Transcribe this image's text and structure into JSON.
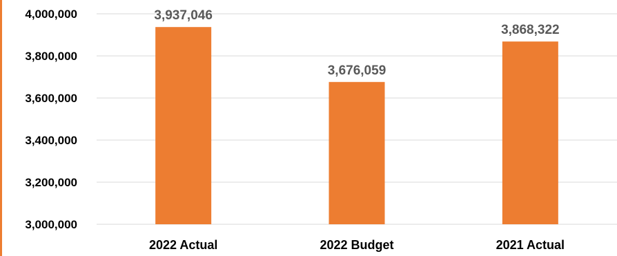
{
  "colors": {
    "bar": "#ed7d31",
    "grid": "#d9d9d9",
    "text": "#000000",
    "data_label": "#595959",
    "left_accent": "#ed7d31"
  },
  "chart_data": {
    "type": "bar",
    "categories": [
      "2022 Actual",
      "2022 Budget",
      "2021 Actual"
    ],
    "values": [
      3937046,
      3676059,
      3868322
    ],
    "data_labels": [
      "3,937,046",
      "3,676,059",
      "3,868,322"
    ],
    "title": "",
    "xlabel": "",
    "ylabel": "",
    "ylim": [
      3000000,
      4000000
    ],
    "yticks": [
      3000000,
      3200000,
      3400000,
      3600000,
      3800000,
      4000000
    ],
    "ytick_labels": [
      "3,000,000",
      "3,200,000",
      "3,400,000",
      "3,600,000",
      "3,800,000",
      "4,000,000"
    ],
    "grid": true,
    "legend": "none"
  }
}
